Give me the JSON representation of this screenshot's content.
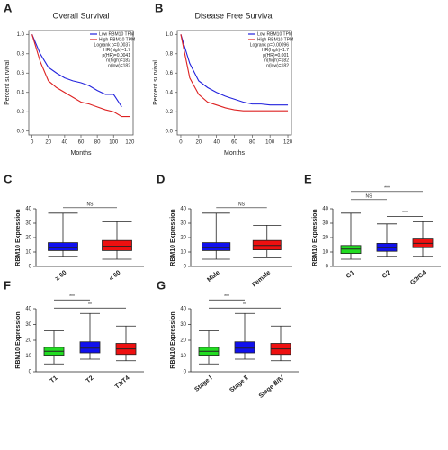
{
  "chart_data": [
    {
      "type": "line",
      "panel_label": "A",
      "title": "Overall Survival",
      "x_label": "Months",
      "y_label": "Percent survival",
      "x": [
        0,
        10,
        20,
        30,
        40,
        50,
        60,
        70,
        80,
        90,
        100,
        110,
        120
      ],
      "xlim": [
        -4,
        124
      ],
      "xticks": [
        0,
        20,
        40,
        60,
        80,
        100,
        120
      ],
      "ylim": [
        -0.04,
        1.04
      ],
      "yticks": [
        {
          "value": 0,
          "label": "0.0"
        },
        {
          "value": 0.2,
          "label": "0.2"
        },
        {
          "value": 0.4,
          "label": "0.4"
        },
        {
          "value": 0.6,
          "label": "0.6"
        },
        {
          "value": 0.8,
          "label": "0.8"
        },
        {
          "value": 1,
          "label": "1.0"
        }
      ],
      "series": [
        {
          "name": "Low RBM10 TPM",
          "color": "#2222dd",
          "values": [
            1.0,
            0.8,
            0.66,
            0.6,
            0.55,
            0.52,
            0.5,
            0.47,
            0.42,
            0.38,
            0.38,
            0.25,
            null
          ]
        },
        {
          "name": "High RBM10 TPM",
          "color": "#dd2222",
          "values": [
            1.0,
            0.72,
            0.52,
            0.45,
            0.4,
            0.35,
            0.3,
            0.28,
            0.25,
            0.22,
            0.2,
            0.15,
            0.15
          ]
        }
      ],
      "stats": [
        "Logrank p=0.0037",
        "HR(high)=1.7",
        "p(HR)=0.0041",
        "n(high)=182",
        "n(low)=182"
      ]
    },
    {
      "type": "line",
      "panel_label": "B",
      "title": "Disease Free Survival",
      "x_label": "Months",
      "y_label": "Percent survival",
      "x": [
        0,
        10,
        20,
        30,
        40,
        50,
        60,
        70,
        80,
        90,
        100,
        110,
        120
      ],
      "xlim": [
        -4,
        124
      ],
      "xticks": [
        0,
        20,
        40,
        60,
        80,
        100,
        120
      ],
      "ylim": [
        -0.04,
        1.04
      ],
      "yticks": [
        {
          "value": 0,
          "label": "0.0"
        },
        {
          "value": 0.2,
          "label": "0.2"
        },
        {
          "value": 0.4,
          "label": "0.4"
        },
        {
          "value": 0.6,
          "label": "0.6"
        },
        {
          "value": 0.8,
          "label": "0.8"
        },
        {
          "value": 1,
          "label": "1.0"
        }
      ],
      "series": [
        {
          "name": "Low RBM10 TPM",
          "color": "#2222dd",
          "values": [
            1.0,
            0.7,
            0.52,
            0.45,
            0.4,
            0.36,
            0.33,
            0.3,
            0.28,
            0.28,
            0.27,
            0.27,
            0.27
          ]
        },
        {
          "name": "High RBM10 TPM",
          "color": "#dd2222",
          "values": [
            1.0,
            0.55,
            0.38,
            0.3,
            0.27,
            0.24,
            0.22,
            0.21,
            0.21,
            0.21,
            0.21,
            0.21,
            0.21
          ]
        }
      ],
      "stats": [
        "Logrank p=0.00096",
        "HR(high)=1.7",
        "p(HR)=0.001",
        "n(high)=182",
        "n(low)=182"
      ]
    },
    {
      "type": "box",
      "panel_label": "C",
      "y_label": "RBM10 Expression",
      "categories": [
        "≥ 60",
        "< 60"
      ],
      "colors": [
        "#1010ee",
        "#ee1010"
      ],
      "ylim": [
        0,
        40
      ],
      "yticks": [
        0,
        10,
        20,
        30,
        40
      ],
      "boxes": [
        {
          "min": 7,
          "q1": 11,
          "median": 13,
          "q3": 16.5,
          "max": 37
        },
        {
          "min": 5,
          "q1": 11,
          "median": 14,
          "q3": 18,
          "max": 31
        }
      ],
      "annotations": [
        {
          "from": "≥ 60",
          "to": "< 60",
          "label": "NS"
        }
      ]
    },
    {
      "type": "box",
      "panel_label": "D",
      "y_label": "RBM10 Expression",
      "categories": [
        "Male",
        "Female"
      ],
      "colors": [
        "#1010ee",
        "#ee1010"
      ],
      "ylim": [
        0,
        40
      ],
      "yticks": [
        0,
        10,
        20,
        30,
        40
      ],
      "boxes": [
        {
          "min": 5,
          "q1": 11,
          "median": 13,
          "q3": 16.5,
          "max": 37
        },
        {
          "min": 6,
          "q1": 11.5,
          "median": 14.5,
          "q3": 18,
          "max": 28.5
        }
      ],
      "annotations": [
        {
          "from": "Male",
          "to": "Female",
          "label": "NS"
        }
      ]
    },
    {
      "type": "box",
      "panel_label": "E",
      "y_label": "RBM10 Expression",
      "categories": [
        "G1",
        "G2",
        "G3/G4"
      ],
      "colors": [
        "#22dd22",
        "#1010ee",
        "#ee1010"
      ],
      "ylim": [
        0,
        40
      ],
      "yticks": [
        0,
        10,
        20,
        30,
        40
      ],
      "boxes": [
        {
          "min": 5,
          "q1": 9,
          "median": 12,
          "q3": 14.5,
          "max": 37
        },
        {
          "min": 7,
          "q1": 10.5,
          "median": 13,
          "q3": 16,
          "max": 29.5
        },
        {
          "min": 7,
          "q1": 13,
          "median": 16,
          "q3": 19,
          "max": 31
        }
      ],
      "annotations": [
        {
          "from": "G2",
          "to": "G3/G4",
          "label": "***"
        },
        {
          "from": "G1",
          "to": "G2",
          "label": "NS"
        },
        {
          "from": "G1",
          "to": "G3/G4",
          "label": "***"
        }
      ]
    },
    {
      "type": "box",
      "panel_label": "F",
      "y_label": "RBM10 Expression",
      "categories": [
        "T1",
        "T2",
        "T3/T4"
      ],
      "colors": [
        "#22dd22",
        "#1010ee",
        "#ee1010"
      ],
      "ylim": [
        0,
        40
      ],
      "yticks": [
        0,
        10,
        20,
        30,
        40
      ],
      "boxes": [
        {
          "min": 5,
          "q1": 10.5,
          "median": 13,
          "q3": 15.5,
          "max": 26
        },
        {
          "min": 8,
          "q1": 12,
          "median": 15,
          "q3": 19,
          "max": 37
        },
        {
          "min": 7,
          "q1": 11,
          "median": 14.5,
          "q3": 18,
          "max": 29
        }
      ],
      "annotations": [
        {
          "from": "T1",
          "to": "T3/T4",
          "label": "**"
        },
        {
          "from": "T1",
          "to": "T2",
          "label": "***"
        }
      ]
    },
    {
      "type": "box",
      "panel_label": "G",
      "y_label": "RBM10 Expression",
      "categories": [
        "Stage Ⅰ",
        "Stage Ⅱ",
        "Stage Ⅲ/Ⅳ"
      ],
      "colors": [
        "#22dd22",
        "#1010ee",
        "#ee1010"
      ],
      "ylim": [
        0,
        40
      ],
      "yticks": [
        0,
        10,
        20,
        30,
        40
      ],
      "boxes": [
        {
          "min": 5,
          "q1": 10.5,
          "median": 13,
          "q3": 15.5,
          "max": 26
        },
        {
          "min": 8,
          "q1": 12,
          "median": 15,
          "q3": 19,
          "max": 37
        },
        {
          "min": 7,
          "q1": 11,
          "median": 14.5,
          "q3": 18,
          "max": 29
        }
      ],
      "annotations": [
        {
          "from": "Stage Ⅰ",
          "to": "Stage Ⅲ/Ⅳ",
          "label": "**"
        },
        {
          "from": "Stage Ⅰ",
          "to": "Stage Ⅱ",
          "label": "***"
        }
      ]
    }
  ]
}
